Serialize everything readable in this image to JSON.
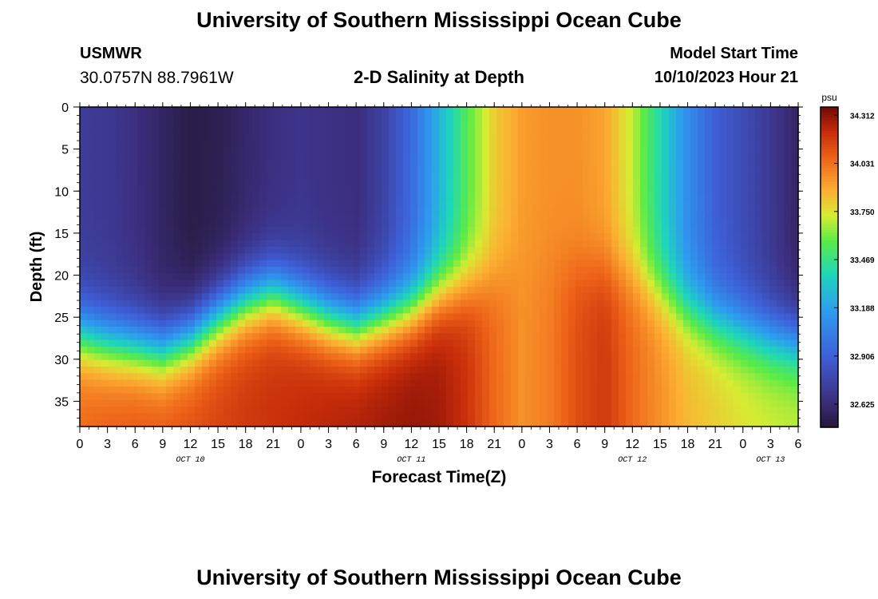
{
  "header": {
    "title": "University of Southern Mississippi Ocean Cube",
    "station_name": "USMWR",
    "station_coords": "30.0757N  88.7961W",
    "subtitle": "2-D Salinity at Depth",
    "start_label": "Model Start Time",
    "start_value": "10/10/2023 Hour 21"
  },
  "footer": {
    "title": "University of Southern Mississippi Ocean Cube"
  },
  "chart_data": {
    "type": "heatmap",
    "title": "2-D Salinity at Depth",
    "xlabel": "Forecast Time(Z)",
    "ylabel": "Depth (ft)",
    "x_range_hours": [
      0,
      78
    ],
    "x_tick_labels": [
      "0",
      "3",
      "6",
      "9",
      "12",
      "15",
      "18",
      "21",
      "0",
      "3",
      "6",
      "9",
      "12",
      "15",
      "18",
      "21",
      "0",
      "3",
      "6",
      "9",
      "12",
      "15",
      "18",
      "21",
      "0",
      "3",
      "6"
    ],
    "x_tick_step_hours": 3,
    "date_labels": [
      {
        "text": "OCT 10",
        "hour": 12
      },
      {
        "text": "OCT 11",
        "hour": 36
      },
      {
        "text": "OCT 12",
        "hour": 60
      },
      {
        "text": "OCT 13",
        "hour": 75
      }
    ],
    "ylim": [
      0,
      38
    ],
    "y_tick_labels": [
      "0",
      "5",
      "10",
      "15",
      "20",
      "25",
      "30",
      "35"
    ],
    "y_tick_values": [
      0,
      5,
      10,
      15,
      20,
      25,
      30,
      35
    ],
    "colorbar": {
      "unit": "psu",
      "min": 32.49,
      "max": 34.36,
      "tick_labels": [
        "34.312",
        "34.031",
        "33.750",
        "33.469",
        "33.188",
        "32.906",
        "32.625"
      ],
      "tick_values": [
        34.312,
        34.031,
        33.75,
        33.469,
        33.188,
        32.906,
        32.625
      ]
    },
    "field_samples": {
      "hours": [
        0,
        3,
        6,
        9,
        12,
        15,
        18,
        21,
        24,
        27,
        30,
        33,
        36,
        39,
        42,
        45,
        48,
        51,
        54,
        57,
        60,
        63,
        66,
        69,
        72,
        75,
        78
      ],
      "surface_psu": [
        32.72,
        32.7,
        32.65,
        32.58,
        32.52,
        32.54,
        32.6,
        32.65,
        32.68,
        32.66,
        32.64,
        32.75,
        32.95,
        33.25,
        33.55,
        33.8,
        33.92,
        33.95,
        33.95,
        33.9,
        33.7,
        33.4,
        33.1,
        32.9,
        32.8,
        32.7,
        32.58
      ],
      "interface_depth_ft": [
        27,
        28,
        28.5,
        29,
        27.5,
        25,
        23,
        22,
        23.5,
        25,
        26,
        25,
        24,
        22,
        21,
        20,
        19,
        19,
        19,
        19,
        20,
        22,
        24,
        25.5,
        26.5,
        27.5,
        28
      ],
      "bottom_psu": [
        34.05,
        34.08,
        34.1,
        34.1,
        34.12,
        34.15,
        34.18,
        34.2,
        34.22,
        34.24,
        34.26,
        34.28,
        34.3,
        34.28,
        34.2,
        34.05,
        33.95,
        34.0,
        34.12,
        34.18,
        34.05,
        33.95,
        33.85,
        33.8,
        33.75,
        33.72,
        33.7
      ]
    }
  }
}
